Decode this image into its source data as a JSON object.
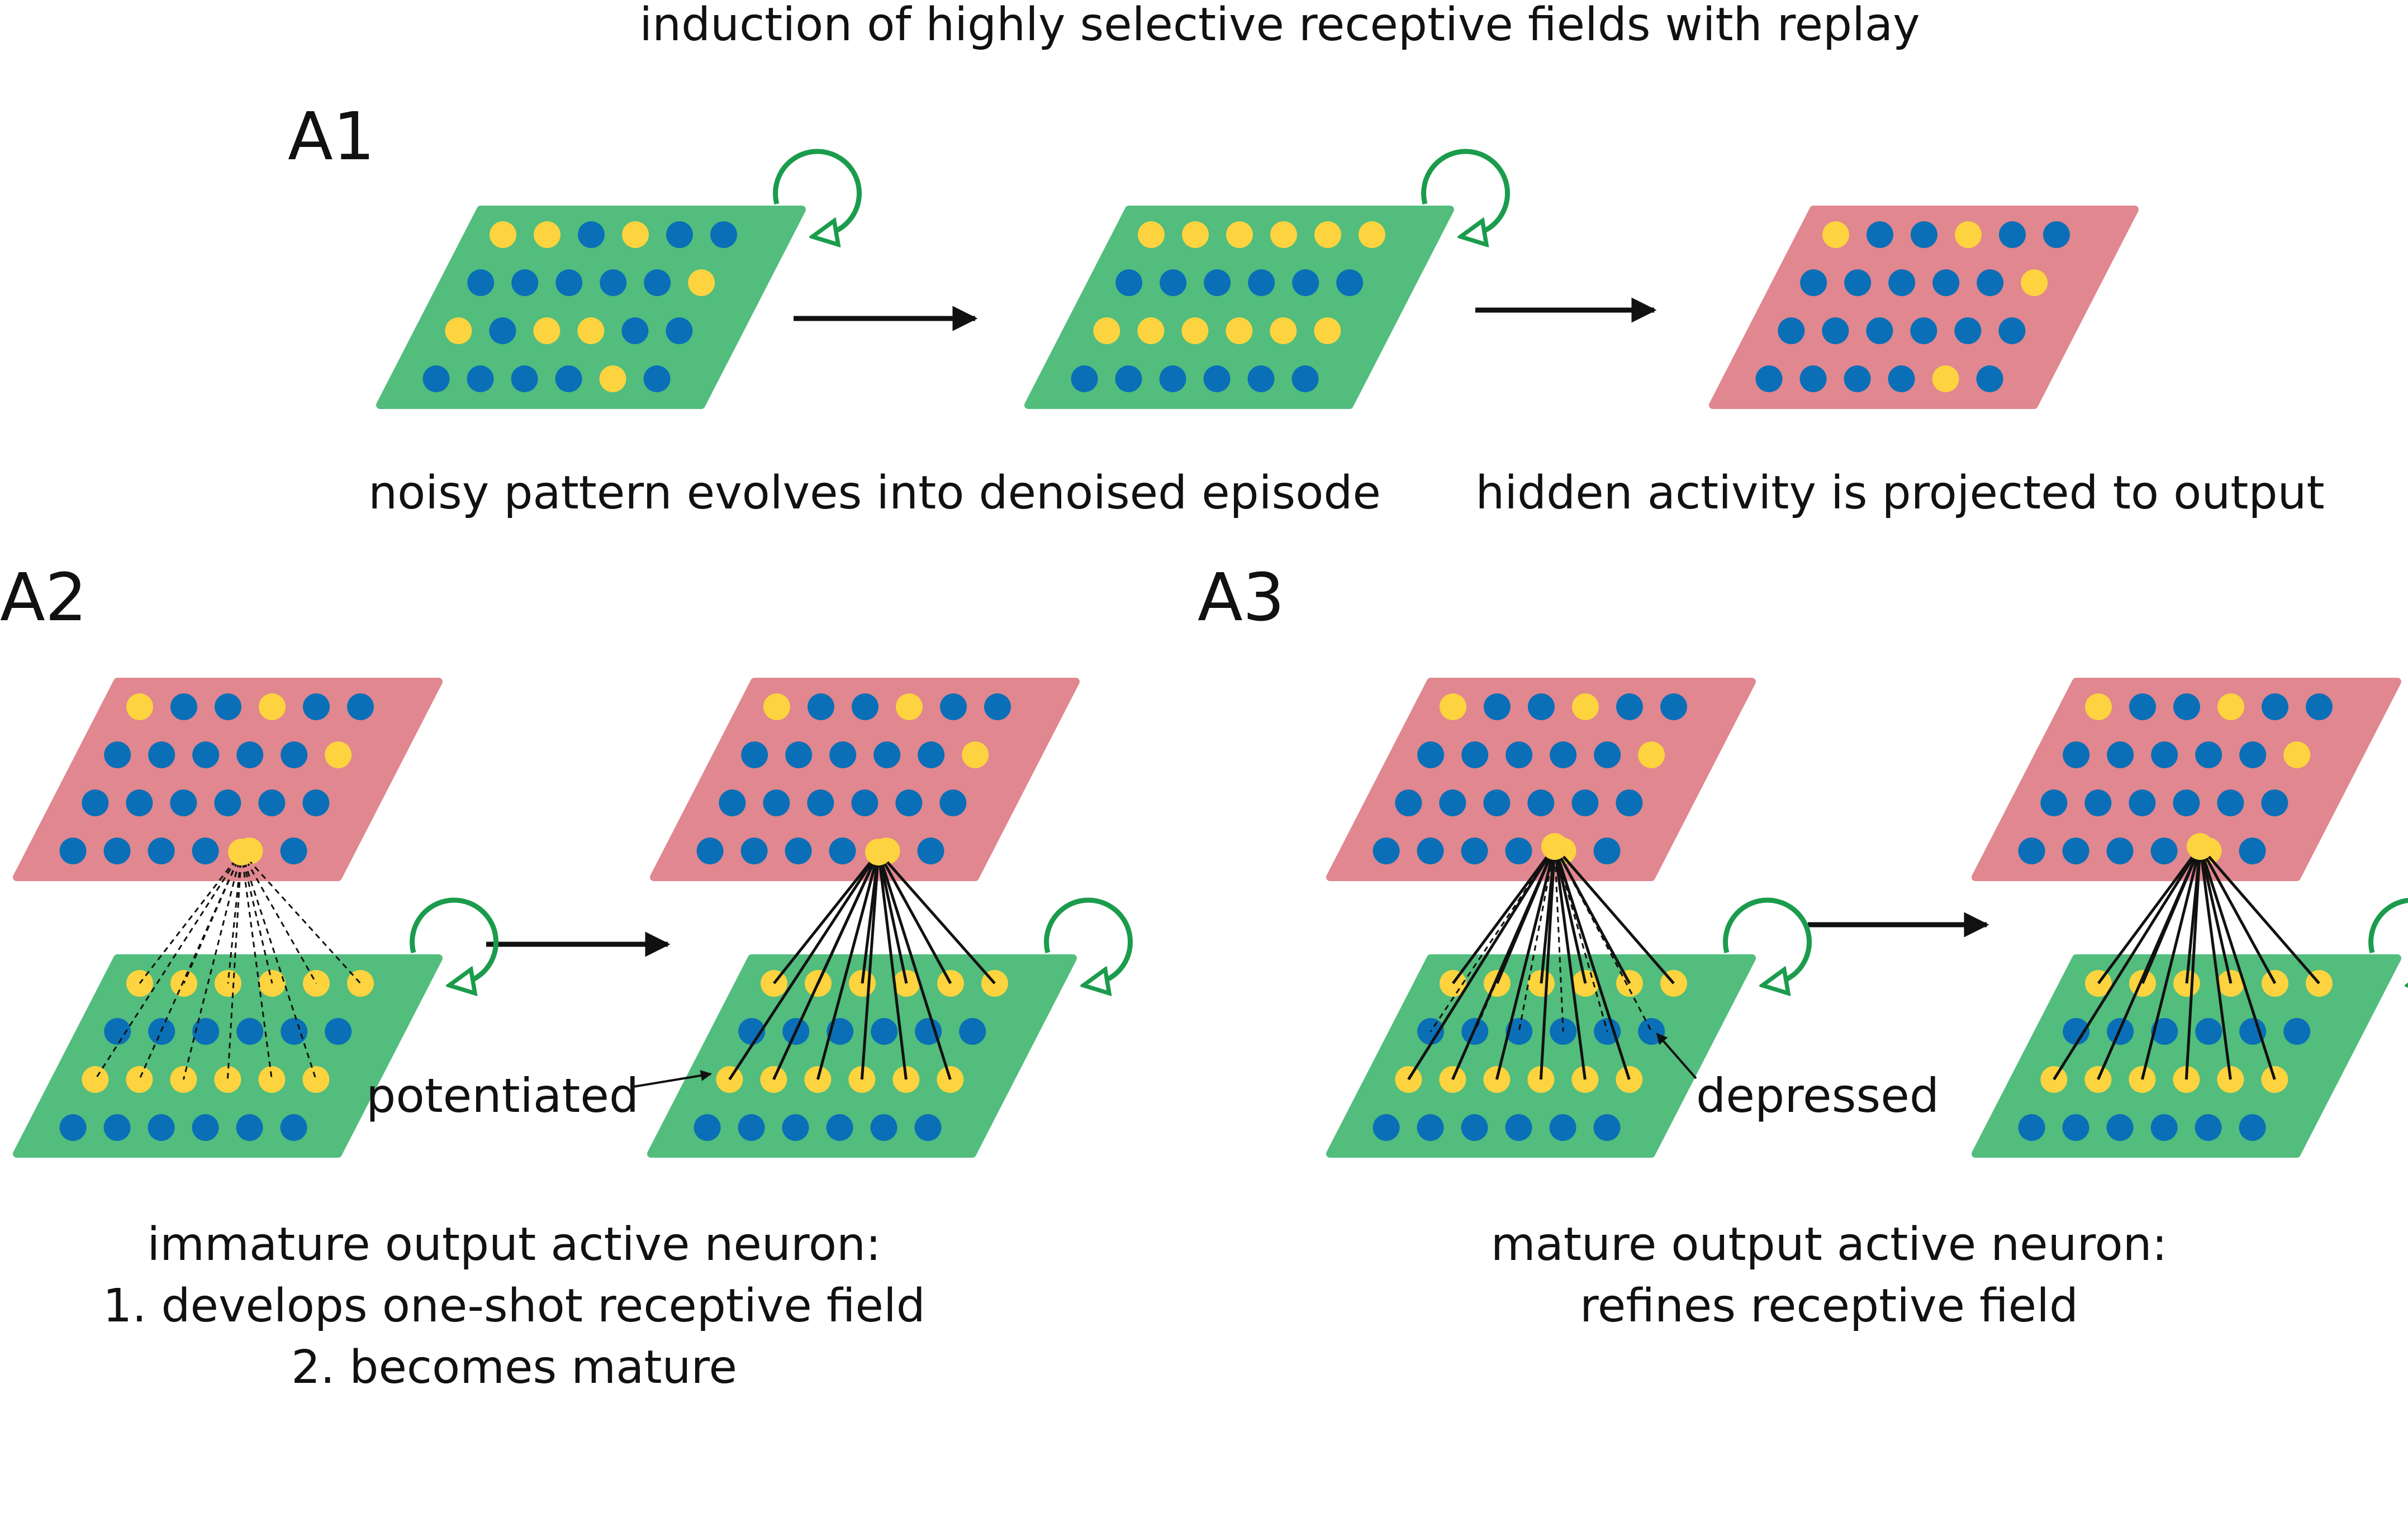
{
  "title": "induction of highly selective receptive fields with replay",
  "colors": {
    "hidden_layer": "#52bd7d",
    "output_layer": "#e0878f",
    "inactive_neuron": "#0a6fb7",
    "active_neuron": "#fdd33f",
    "recurrent_loop": "#1b9c4c",
    "connection": "#111111"
  },
  "panels": {
    "a1": {
      "label": "A1",
      "caption_left": "noisy pattern evolves into denoised episode",
      "caption_right": "hidden activity is projected to output",
      "layers": [
        {
          "kind": "hidden",
          "pattern": [
            "YYBYBB",
            "BBBBBY",
            "YBYYBB",
            "BBBBYB"
          ]
        },
        {
          "kind": "hidden",
          "pattern": [
            "YYYYYY",
            "BBBBBB",
            "YYYYYY",
            "BBBBBB"
          ]
        },
        {
          "kind": "output",
          "pattern": [
            "YBBYBB",
            "BBBBBY",
            "BBBBBB",
            "BBBBYB"
          ]
        }
      ]
    },
    "a2": {
      "label": "A2",
      "annotation": "potentiated",
      "caption_lines": [
        "immature output active neuron:",
        "1. develops one-shot receptive field",
        "2. becomes mature"
      ],
      "output_pattern": [
        "YBBYBB",
        "BBBBBY",
        "BBBBBB",
        "BBBBYB"
      ],
      "hidden_pattern": [
        "YYYYYY",
        "BBBBBB",
        "YYYYYY",
        "BBBBBB"
      ],
      "weak_connections": 12,
      "strong_connections": 12
    },
    "a3": {
      "label": "A3",
      "annotation": "depressed",
      "caption_lines": [
        "mature output active neuron:",
        "refines receptive field"
      ],
      "output_pattern": [
        "YBBYBB",
        "BBBBBY",
        "BBBBBB",
        "BBBBYB"
      ],
      "hidden_pattern": [
        "YYYYYY",
        "BBBBBB",
        "YYYYYY",
        "BBBBBB"
      ],
      "strong_connections": 12,
      "depressed_connections": 6
    }
  }
}
